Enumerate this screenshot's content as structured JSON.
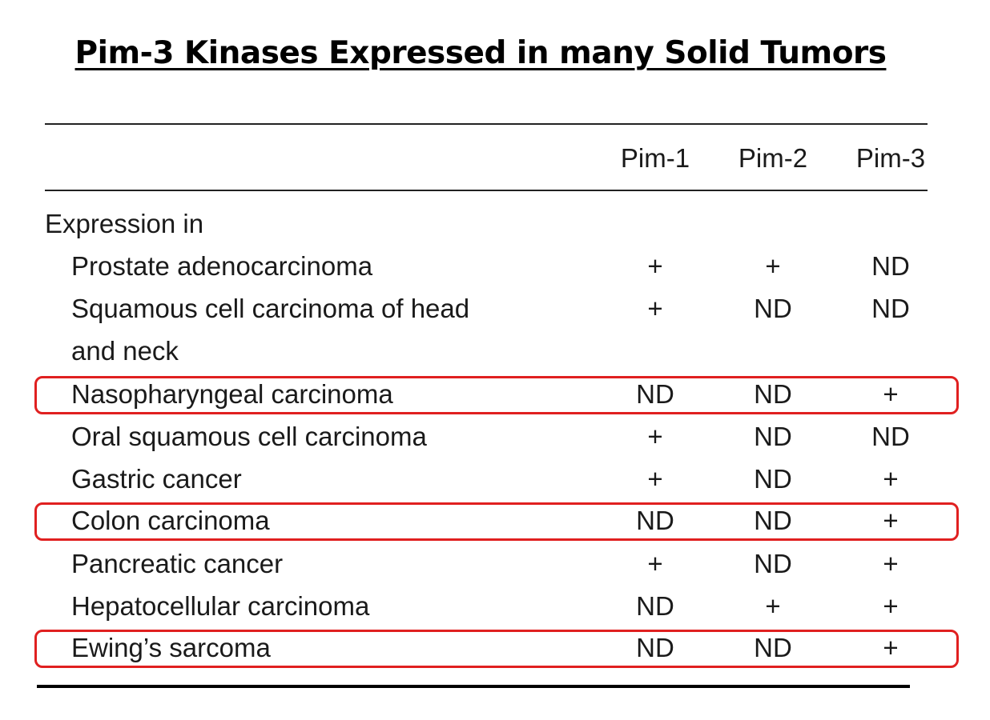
{
  "title": "Pim-3 Kinases Expressed in many Solid Tumors",
  "table": {
    "columns": [
      "Pim-1",
      "Pim-2",
      "Pim-3"
    ],
    "section_label": "Expression in",
    "rows": [
      {
        "label": "Prostate adenocarcinoma",
        "values": [
          "+",
          "+",
          "ND"
        ],
        "highlighted": false
      },
      {
        "label": "Squamous cell carcinoma of head",
        "label_line2": "and neck",
        "values": [
          "+",
          "ND",
          "ND"
        ],
        "highlighted": false
      },
      {
        "label": "Nasopharyngeal carcinoma",
        "values": [
          "ND",
          "ND",
          "+"
        ],
        "highlighted": true
      },
      {
        "label": "Oral squamous cell carcinoma",
        "values": [
          "+",
          "ND",
          "ND"
        ],
        "highlighted": false
      },
      {
        "label": "Gastric cancer",
        "values": [
          "+",
          "ND",
          "+"
        ],
        "highlighted": false
      },
      {
        "label": "Colon carcinoma",
        "values": [
          "ND",
          "ND",
          "+"
        ],
        "highlighted": true
      },
      {
        "label": "Pancreatic cancer",
        "values": [
          "+",
          "ND",
          "+"
        ],
        "highlighted": false
      },
      {
        "label": "Hepatocellular carcinoma",
        "values": [
          "ND",
          "+",
          "+"
        ],
        "highlighted": false
      },
      {
        "label": "Ewing’s sarcoma",
        "values": [
          "ND",
          "ND",
          "+"
        ],
        "highlighted": true
      }
    ]
  },
  "colors": {
    "highlight_border": "#e02020",
    "text": "#1a1a1a"
  }
}
